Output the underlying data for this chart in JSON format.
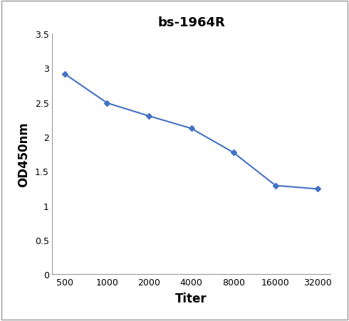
{
  "title": "bs-1964R",
  "xlabel": "Titer",
  "ylabel": "OD450nm",
  "x_values": [
    500,
    1000,
    2000,
    4000,
    8000,
    16000,
    32000
  ],
  "y_values": [
    2.91,
    2.49,
    2.3,
    2.12,
    1.77,
    1.29,
    1.24
  ],
  "line_color": "#4472C4",
  "marker": "D",
  "marker_size": 4,
  "line_width": 1.5,
  "ylim": [
    0,
    3.5
  ],
  "yticks": [
    0,
    0.5,
    1,
    1.5,
    2,
    2.5,
    3,
    3.5
  ],
  "xtick_labels": [
    "500",
    "1000",
    "2000",
    "4000",
    "8000",
    "16000",
    "32000"
  ],
  "title_fontsize": 13,
  "axis_label_fontsize": 12,
  "tick_fontsize": 9,
  "background_color": "#ffffff",
  "spine_color": "#aaaaaa",
  "frame_color": "#999999"
}
